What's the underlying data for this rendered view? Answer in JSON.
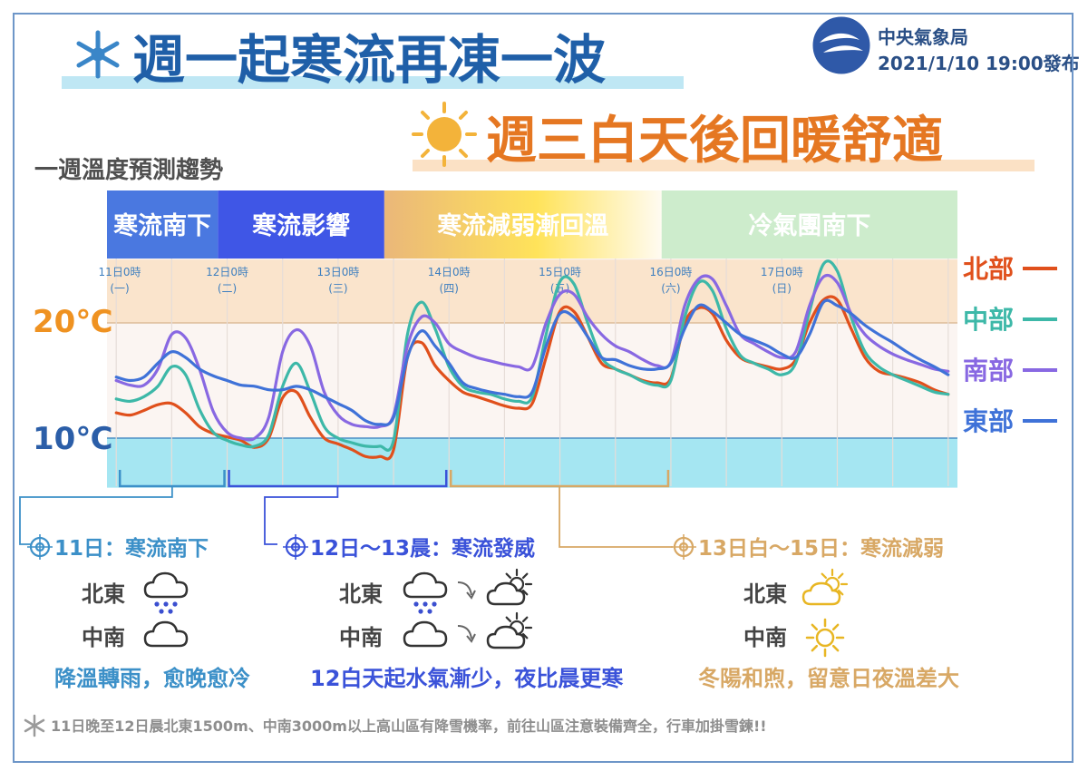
{
  "header": {
    "title_main": "週一起寒流再凍一波",
    "title_sub": "週三白天後回暖舒適",
    "agency": "中央氣象局",
    "issued": "2021/1/10 19:00發布"
  },
  "chart_data": {
    "type": "line",
    "title": "一週溫度預測趨勢",
    "x_unit": "hours since 11日0時",
    "x": [
      0,
      3,
      6,
      9,
      12,
      15,
      18,
      21,
      24,
      27,
      30,
      33,
      36,
      39,
      42,
      45,
      48,
      51,
      54,
      57,
      60,
      63,
      66,
      69,
      72,
      75,
      78,
      81,
      84,
      87,
      90,
      93,
      96,
      99,
      102,
      105,
      108,
      111,
      114,
      117,
      120,
      123,
      126,
      129,
      132,
      135,
      138,
      141,
      144,
      147,
      150,
      153,
      156,
      159,
      162,
      165,
      168,
      171,
      174,
      177,
      180
    ],
    "xlim": [
      -2,
      182
    ],
    "ylim": [
      5,
      28
    ],
    "y_ticks": [
      {
        "value": 20,
        "label": "20℃"
      },
      {
        "value": 10,
        "label": "10℃"
      }
    ],
    "bands": [
      {
        "from": 10,
        "to": 20,
        "color": "#fbf5f2"
      },
      {
        "from": 20,
        "to": 25.5,
        "color": "#fae4cc"
      },
      {
        "from": 5.7,
        "to": 10,
        "color": "#a5e6f2"
      }
    ],
    "day_ticks": [
      {
        "x": 0,
        "label": "11日0時",
        "weekday": "(一)"
      },
      {
        "x": 24,
        "label": "12日0時",
        "weekday": "(二)"
      },
      {
        "x": 48,
        "label": "13日0時",
        "weekday": "(三)"
      },
      {
        "x": 72,
        "label": "14日0時",
        "weekday": "(四)"
      },
      {
        "x": 96,
        "label": "15日0時",
        "weekday": "(五)"
      },
      {
        "x": 120,
        "label": "16日0時",
        "weekday": "(六)"
      },
      {
        "x": 144,
        "label": "17日0時",
        "weekday": "(日)"
      }
    ],
    "phases": [
      {
        "label": "寒流南下",
        "from": -2,
        "to": 22,
        "fill": "#4a78e0",
        "text_color": "#ffffff"
      },
      {
        "label": "寒流影響",
        "from": 22,
        "to": 58,
        "fill": "#3f56e6",
        "text_color": "#ffffff"
      },
      {
        "label": "寒流減弱漸回溫",
        "from": 58,
        "to": 118,
        "fill": "gradient",
        "text_color": "#ffffff"
      },
      {
        "label": "冷氣團南下",
        "from": 118,
        "to": 182,
        "fill": "#cdeccc",
        "text_color": "#ffffff"
      }
    ],
    "series": [
      {
        "name": "北部",
        "color": "#e0501c",
        "values": [
          12.2,
          12.0,
          12.4,
          12.9,
          13.0,
          12.2,
          11.0,
          10.4,
          10.1,
          9.8,
          9.2,
          10.0,
          13.5,
          14.0,
          11.8,
          10.0,
          9.5,
          9.0,
          8.4,
          8.4,
          9.0,
          17.0,
          18.3,
          16.3,
          15.0,
          14.0,
          13.6,
          13.2,
          12.8,
          12.6,
          13.0,
          17.0,
          21.0,
          21.0,
          18.8,
          16.5,
          16.0,
          15.5,
          15.0,
          14.8,
          15.2,
          20.0,
          21.3,
          20.8,
          18.5,
          17.0,
          16.5,
          16.2,
          16.0,
          16.8,
          20.0,
          22.0,
          22.0,
          19.5,
          17.0,
          15.8,
          15.5,
          15.2,
          14.8,
          14.2,
          13.8
        ]
      },
      {
        "name": "中部",
        "color": "#3db8a8",
        "values": [
          13.4,
          13.2,
          13.6,
          14.5,
          16.2,
          15.5,
          12.5,
          10.5,
          9.8,
          9.4,
          9.3,
          10.3,
          14.5,
          16.5,
          14.0,
          11.0,
          10.0,
          9.6,
          9.3,
          9.3,
          9.8,
          19.0,
          21.8,
          19.5,
          16.2,
          14.5,
          14.0,
          13.8,
          13.4,
          13.2,
          13.6,
          19.0,
          23.6,
          23.4,
          20.0,
          17.0,
          16.0,
          15.5,
          14.9,
          14.6,
          15.0,
          20.5,
          23.5,
          22.8,
          19.5,
          17.2,
          16.5,
          16.0,
          15.5,
          16.5,
          21.0,
          25.1,
          24.5,
          20.5,
          17.5,
          16.2,
          15.5,
          15.0,
          14.5,
          14.0,
          13.8
        ]
      },
      {
        "name": "南部",
        "color": "#8868e2",
        "values": [
          15.0,
          14.6,
          14.6,
          16.0,
          19.0,
          18.7,
          16.0,
          12.3,
          10.5,
          10.0,
          10.0,
          11.8,
          17.5,
          19.4,
          18.0,
          14.0,
          12.0,
          11.2,
          11.0,
          11.0,
          12.0,
          18.0,
          20.5,
          20.0,
          18.2,
          17.5,
          17.0,
          16.7,
          16.4,
          16.2,
          16.2,
          20.0,
          22.5,
          22.5,
          20.5,
          19.0,
          18.0,
          17.5,
          16.8,
          16.3,
          16.6,
          21.5,
          23.8,
          23.8,
          21.5,
          19.0,
          18.2,
          17.5,
          17.0,
          17.5,
          21.5,
          24.0,
          23.5,
          20.8,
          19.0,
          18.0,
          17.3,
          16.8,
          16.4,
          16.0,
          15.8
        ]
      },
      {
        "name": "東部",
        "color": "#3f72d8",
        "values": [
          15.3,
          15.0,
          15.3,
          16.5,
          17.5,
          17.0,
          16.0,
          15.4,
          15.0,
          14.6,
          14.5,
          14.2,
          14.2,
          14.5,
          14.2,
          13.6,
          13.0,
          12.4,
          11.5,
          11.2,
          11.8,
          17.0,
          19.3,
          18.0,
          16.5,
          14.8,
          14.3,
          14.0,
          13.8,
          13.6,
          14.0,
          18.0,
          20.8,
          20.5,
          18.8,
          17.0,
          16.8,
          16.3,
          16.0,
          16.0,
          16.5,
          19.5,
          21.5,
          21.0,
          20.0,
          19.0,
          18.5,
          18.0,
          17.3,
          17.0,
          19.0,
          21.8,
          21.5,
          20.8,
          19.8,
          19.0,
          18.3,
          17.5,
          16.8,
          16.2,
          15.5
        ]
      }
    ]
  },
  "sections": [
    {
      "title": "11日：寒流南下",
      "color": "#3c90c8",
      "bracket": [
        0,
        24
      ],
      "rows": [
        {
          "region": "北東",
          "icons": [
            "rain-cloud-icon"
          ]
        },
        {
          "region": "中南",
          "icons": [
            "cloud-icon"
          ]
        }
      ],
      "desc": "降溫轉雨，愈晚愈冷"
    },
    {
      "title": "12日～13晨：寒流發威",
      "color": "#3a52d9",
      "bracket": [
        24,
        72
      ],
      "rows": [
        {
          "region": "北東",
          "icons": [
            "rain-cloud-icon",
            "arrow-icon",
            "partly-sunny-icon"
          ]
        },
        {
          "region": "中南",
          "icons": [
            "cloud-icon",
            "arrow-icon",
            "partly-sunny-icon"
          ]
        }
      ],
      "desc": "12白天起水氣漸少，夜比晨更寒"
    },
    {
      "title": "13日白～15日：寒流減弱",
      "color": "#d8a865",
      "bracket": [
        72,
        120
      ],
      "rows": [
        {
          "region": "北東",
          "icons": [
            "partly-sunny-icon"
          ]
        },
        {
          "region": "中南",
          "icons": [
            "sun-icon"
          ]
        }
      ],
      "desc": "冬陽和煦，留意日夜溫差大"
    }
  ],
  "footnote": "11日晚至12日晨北東1500m、中南3000m以上高山區有降雪機率，前往山區注意裝備齊全，行車加掛雪鍊!!",
  "icons": {
    "snowflake": "snowflake-icon",
    "sun": "sun-icon",
    "logo": "cwb-logo",
    "target": "target-icon"
  }
}
